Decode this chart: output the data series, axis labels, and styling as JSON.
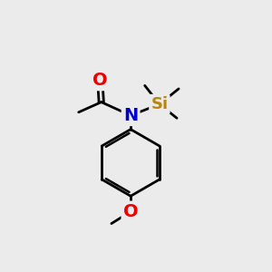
{
  "bg_color": "#ebebeb",
  "atom_colors": {
    "C": "#000000",
    "N": "#0000cc",
    "O": "#ee0000",
    "Si": "#b8860b"
  },
  "bond_color": "#000000",
  "bond_width": 2.0,
  "fig_width": 3.0,
  "fig_height": 3.0,
  "dpi": 100,
  "font_size_atoms": 14,
  "font_size_si": 13
}
